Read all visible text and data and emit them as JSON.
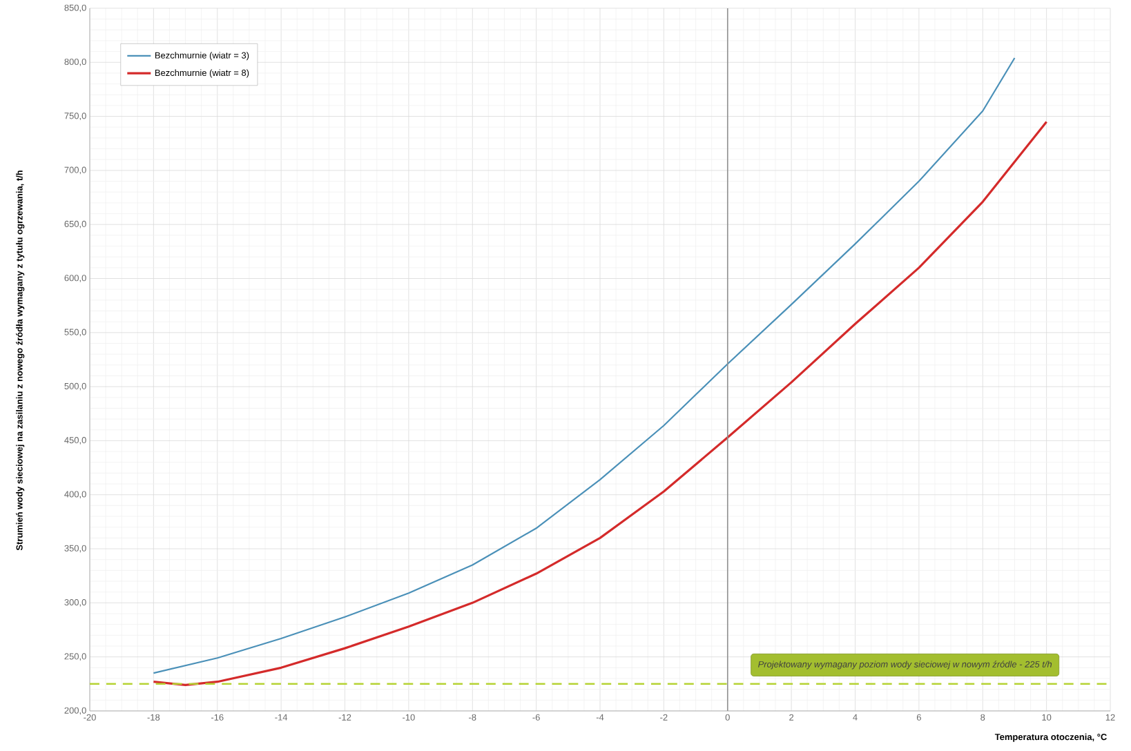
{
  "chart_data": {
    "type": "line",
    "xlabel": "Temperatura otoczenia, °C",
    "ylabel": "Strumień wody sieciowej na zasilaniu z nowego źródła wymagany z tytułu ogrzewania, t/h",
    "series": [
      {
        "name": "Bezchmurnie (wiatr = 3)",
        "color": "#4a90b8",
        "x": [
          -18,
          -16,
          -14,
          -12,
          -10,
          -8,
          -6,
          -4,
          -2,
          0,
          2,
          4,
          6,
          8,
          9
        ],
        "values": [
          235,
          249,
          267,
          287,
          309,
          335,
          369,
          414,
          464,
          521,
          576,
          632,
          690,
          755,
          804
        ]
      },
      {
        "name": "Bezchmurnie (wiatr = 8)",
        "color": "#d42a2a",
        "x": [
          -18,
          -17,
          -16,
          -14,
          -12,
          -10,
          -8,
          -6,
          -4,
          -2,
          0,
          2,
          4,
          6,
          8,
          10
        ],
        "values": [
          227,
          224,
          227,
          240,
          258,
          278,
          300,
          327,
          360,
          403,
          453,
          504,
          558,
          610,
          671,
          745
        ]
      }
    ],
    "xlim": [
      -20,
      12
    ],
    "xticks": [
      -20,
      -18,
      -16,
      -14,
      -12,
      -10,
      -8,
      -6,
      -4,
      -2,
      0,
      2,
      4,
      6,
      8,
      10,
      12
    ],
    "ylim": [
      200,
      850
    ],
    "yticks": [
      {
        "value": 200,
        "label": "200,0"
      },
      {
        "value": 250,
        "label": "250,0"
      },
      {
        "value": 300,
        "label": "300,0"
      },
      {
        "value": 350,
        "label": "350,0"
      },
      {
        "value": 400,
        "label": "400,0"
      },
      {
        "value": 450,
        "label": "450,0"
      },
      {
        "value": 500,
        "label": "500,0"
      },
      {
        "value": 550,
        "label": "550,0"
      },
      {
        "value": 600,
        "label": "600,0"
      },
      {
        "value": 650,
        "label": "650,0"
      },
      {
        "value": 700,
        "label": "700,0"
      },
      {
        "value": 750,
        "label": "750,0"
      },
      {
        "value": 800,
        "label": "800,0"
      },
      {
        "value": 850,
        "label": "850,0"
      }
    ],
    "ref_lines": [
      {
        "axis": "y",
        "value": 225,
        "label": "Projektowany wymagany poziom wody sieciowej w nowym źródle - 225 t/h",
        "color": "#b5d334",
        "line_style": "dashed"
      },
      {
        "axis": "x",
        "value": 0,
        "color": "#909090",
        "line_style": "solid"
      }
    ],
    "grid": true,
    "legend": "top left",
    "marker": "none",
    "line_style": "solid"
  }
}
